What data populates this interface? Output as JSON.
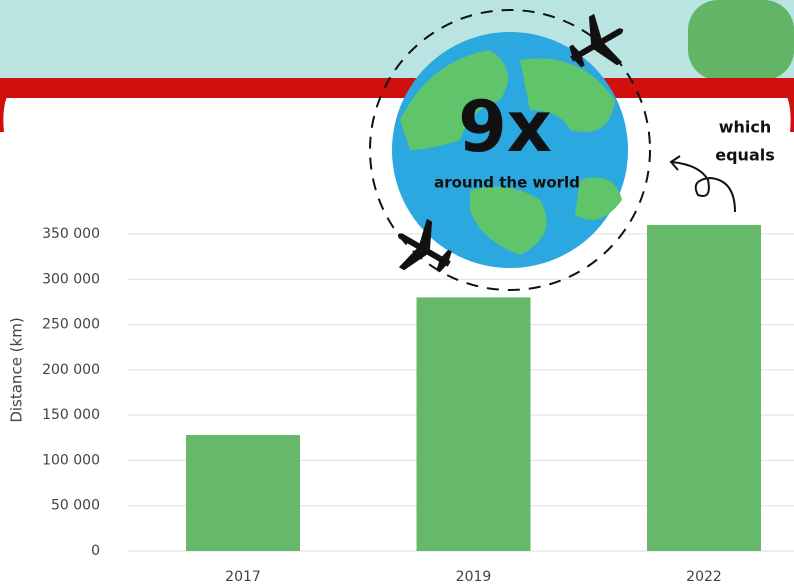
{
  "chart_data": {
    "type": "bar",
    "y_label": "Distance (km)",
    "categories": [
      "2017",
      "2019",
      "2022"
    ],
    "values": [
      128000,
      280000,
      360000
    ],
    "color": "#66b86a",
    "ylim": [
      0,
      350000
    ],
    "yticks": [
      {
        "value": 0,
        "label": "0"
      },
      {
        "value": 50000,
        "label": "50 000"
      },
      {
        "value": 100000,
        "label": "100 000"
      },
      {
        "value": 150000,
        "label": "150 000"
      },
      {
        "value": 200000,
        "label": "200 000"
      },
      {
        "value": 250000,
        "label": "250 000"
      },
      {
        "value": 300000,
        "label": "300 000"
      },
      {
        "value": 350000,
        "label": "350 000"
      }
    ],
    "grid": true,
    "annotations": {
      "multiplier": "9x",
      "caption": "around the world",
      "note": [
        "which",
        "equals"
      ]
    }
  }
}
